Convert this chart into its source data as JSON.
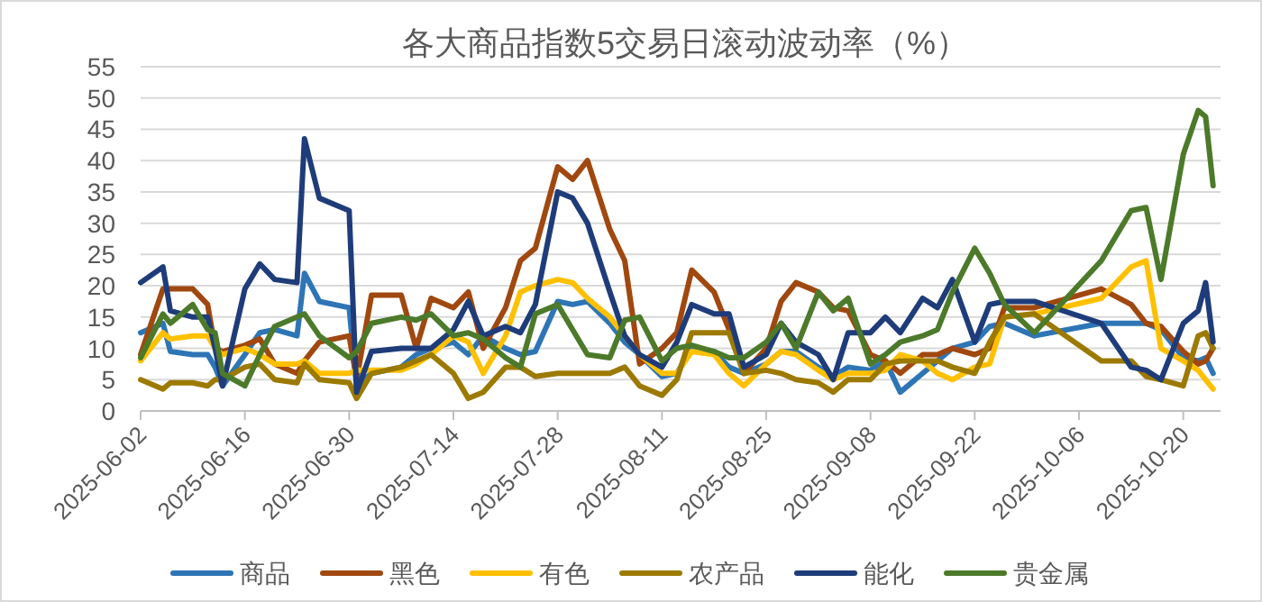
{
  "chart_data": {
    "type": "line",
    "title": "各大商品指数5交易日滚动波动率（%）",
    "x": [
      "2025-06-02",
      "2025-06-05",
      "2025-06-06",
      "2025-06-09",
      "2025-06-11",
      "2025-06-12",
      "2025-06-13",
      "2025-06-16",
      "2025-06-18",
      "2025-06-20",
      "2025-06-23",
      "2025-06-24",
      "2025-06-26",
      "2025-06-30",
      "2025-07-01",
      "2025-07-03",
      "2025-07-07",
      "2025-07-09",
      "2025-07-11",
      "2025-07-14",
      "2025-07-16",
      "2025-07-18",
      "2025-07-21",
      "2025-07-23",
      "2025-07-25",
      "2025-07-28",
      "2025-07-30",
      "2025-08-01",
      "2025-08-04",
      "2025-08-06",
      "2025-08-08",
      "2025-08-11",
      "2025-08-13",
      "2025-08-15",
      "2025-08-18",
      "2025-08-20",
      "2025-08-22",
      "2025-08-25",
      "2025-08-27",
      "2025-08-29",
      "2025-09-01",
      "2025-09-03",
      "2025-09-05",
      "2025-09-08",
      "2025-09-10",
      "2025-09-12",
      "2025-09-15",
      "2025-09-17",
      "2025-09-19",
      "2025-09-22",
      "2025-09-24",
      "2025-09-26",
      "2025-09-30",
      "2025-10-09",
      "2025-10-13",
      "2025-10-15",
      "2025-10-17",
      "2025-10-20",
      "2025-10-22",
      "2025-10-23",
      "2025-10-24"
    ],
    "series": [
      {
        "name": "商品",
        "color": "#2e75b6",
        "values": [
          12.5,
          14,
          9.5,
          9,
          9,
          7,
          4,
          9,
          12.5,
          13,
          12,
          22,
          17.5,
          16.5,
          4,
          6,
          7,
          9,
          10,
          11,
          9,
          12,
          10,
          9,
          9.5,
          17.5,
          17,
          17.5,
          14,
          11,
          9,
          5.5,
          6,
          10,
          9.5,
          7,
          6,
          7.5,
          9.5,
          9.5,
          7,
          5.5,
          7,
          6.5,
          8,
          3,
          6,
          8,
          10,
          11,
          13.5,
          14,
          12,
          14,
          14,
          14,
          13,
          8.5,
          8,
          8.5,
          6
        ]
      },
      {
        "name": "黑色",
        "color": "#a0480f",
        "values": [
          9,
          19.5,
          19.5,
          19.5,
          17,
          10,
          9.5,
          10.5,
          11.5,
          7.5,
          6,
          8,
          11,
          12,
          5,
          18.5,
          18.5,
          10,
          18,
          16.5,
          19,
          10,
          16.5,
          24,
          26,
          39,
          37,
          40,
          29,
          24,
          7.5,
          10,
          12.5,
          22.5,
          19,
          13,
          6,
          10,
          17.5,
          20.5,
          19,
          16.5,
          16,
          9,
          8,
          6,
          9,
          9,
          10,
          9,
          10,
          16.5,
          16.5,
          19.5,
          17,
          14,
          13.5,
          9.5,
          7.5,
          8,
          10
        ]
      },
      {
        "name": "有色",
        "color": "#ffc000",
        "values": [
          8,
          12.5,
          11.5,
          12,
          12,
          10,
          9,
          10,
          9,
          7.5,
          7.5,
          8,
          6,
          6,
          6.5,
          6.5,
          6.5,
          7.5,
          9,
          12,
          11,
          6,
          12,
          19,
          20,
          21,
          20.5,
          18,
          15,
          12,
          9,
          6,
          6,
          9.5,
          9,
          6,
          4,
          7.5,
          9.5,
          9,
          6.5,
          5,
          6,
          6,
          6.5,
          9,
          8,
          6,
          5,
          7,
          7.5,
          15,
          15.5,
          18,
          23,
          24,
          10,
          8,
          6.5,
          5,
          3.5
        ]
      },
      {
        "name": "农产品",
        "color": "#9c7a00",
        "values": [
          5,
          3.5,
          4.5,
          4.5,
          4,
          5,
          5,
          7,
          7.5,
          5,
          4.5,
          7.5,
          5,
          4.5,
          2,
          6,
          7,
          8,
          9,
          6,
          2,
          3,
          7,
          7,
          5.5,
          6,
          6,
          6,
          6,
          7,
          4,
          2.5,
          5,
          12.5,
          12.5,
          12.5,
          6,
          6.5,
          6,
          5,
          4.5,
          3,
          5,
          5,
          7.5,
          8,
          8,
          8,
          7,
          6,
          11,
          15,
          15.5,
          8,
          8,
          5.5,
          5,
          4,
          12,
          12.5,
          10
        ]
      },
      {
        "name": "能化",
        "color": "#1f3c7a",
        "values": [
          20.5,
          23,
          16,
          15,
          15,
          10,
          4,
          19.5,
          23.5,
          21,
          20.5,
          43.5,
          34,
          32,
          3,
          9.5,
          10,
          10,
          10,
          13,
          17.5,
          12,
          13.5,
          12.5,
          17,
          35,
          34,
          30,
          19,
          12,
          9,
          7,
          11,
          17,
          15.5,
          15.5,
          7,
          9,
          14,
          11,
          9,
          5,
          12.5,
          12.5,
          15,
          12.5,
          18,
          16.5,
          21,
          11,
          17,
          17.5,
          17.5,
          14,
          7,
          6.5,
          5,
          14,
          16,
          20.5,
          11
        ]
      },
      {
        "name": "贵金属",
        "color": "#4c7a2a",
        "values": [
          8.5,
          15.5,
          14,
          17,
          13,
          12.5,
          6,
          4,
          9,
          13.5,
          15,
          15.5,
          12,
          8.5,
          9.5,
          14,
          15,
          14.5,
          15.5,
          12,
          12.5,
          11.5,
          8.5,
          7,
          15.5,
          17,
          13,
          9,
          8.5,
          14.5,
          15,
          8,
          10,
          10.5,
          9.5,
          8.5,
          8.5,
          11,
          14,
          10,
          19,
          16,
          18,
          7.5,
          9,
          11,
          12,
          13,
          19,
          26,
          22,
          17,
          12.5,
          24,
          32,
          32.5,
          21,
          41,
          48,
          47,
          36
        ]
      }
    ],
    "xlim": [
      "2025-06-02",
      "2025-10-25"
    ],
    "xticks": [
      "2025-06-02",
      "2025-06-16",
      "2025-06-30",
      "2025-07-14",
      "2025-07-28",
      "2025-08-11",
      "2025-08-25",
      "2025-09-08",
      "2025-09-22",
      "2025-10-06",
      "2025-10-20"
    ],
    "ylim": [
      0,
      55
    ],
    "yticks": [
      0,
      5,
      10,
      15,
      20,
      25,
      30,
      35,
      40,
      45,
      50,
      55
    ],
    "grid": "y",
    "legend": "bottom"
  }
}
